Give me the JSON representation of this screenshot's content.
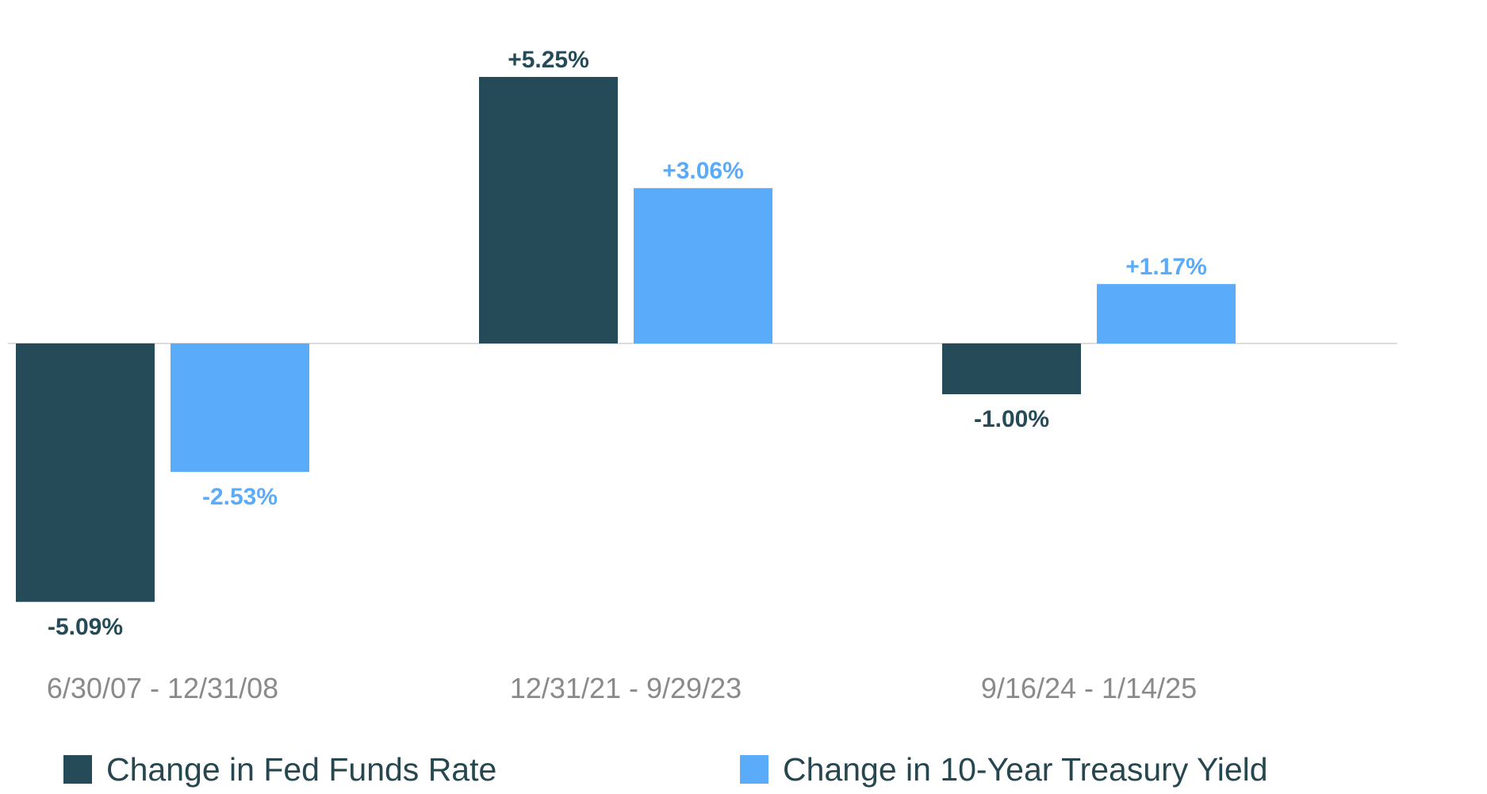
{
  "chart_data": {
    "type": "bar",
    "title": "",
    "xlabel": "",
    "ylabel": "",
    "ylim": [
      -6.5,
      5.5
    ],
    "grid": false,
    "legend_position": "bottom",
    "categories": [
      "6/30/07 - 12/31/08",
      "12/31/21 - 9/29/23",
      "9/16/24 - 1/14/25"
    ],
    "series": [
      {
        "name": "Change in Fed Funds Rate",
        "color": "#254B58",
        "values": [
          -5.09,
          5.25,
          -1.0
        ],
        "labels": [
          "-5.09%",
          "+5.25%",
          "-1.00%"
        ]
      },
      {
        "name": "Change in 10-Year Treasury Yield",
        "color": "#5BABFB",
        "values": [
          -2.53,
          3.06,
          1.17
        ],
        "labels": [
          "-2.53%",
          "+3.06%",
          "+1.17%"
        ]
      }
    ]
  }
}
